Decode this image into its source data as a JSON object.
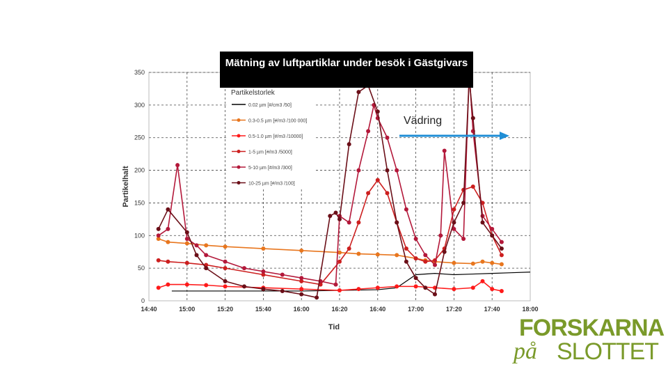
{
  "title": "Mätning av luftpartiklar under besök i Gästgivars",
  "annotation": "Vädring",
  "logo": {
    "line1": "FORSKARNA",
    "line2a": "på",
    "line2b": "SLOTTET",
    "color": "#7a9a2a"
  },
  "chart_data": {
    "type": "line",
    "xlabel": "Tid",
    "ylabel": "Partikelhalt",
    "ylim": [
      0,
      350
    ],
    "yticks": [
      0,
      50,
      100,
      150,
      200,
      250,
      300,
      350
    ],
    "xlim_minutes": [
      880,
      1080
    ],
    "xticks": [
      "14:40",
      "15:00",
      "15:20",
      "15:40",
      "16:00",
      "16:20",
      "16:40",
      "17:00",
      "17:20",
      "17:40",
      "18:00"
    ],
    "grid": true,
    "legend_title": "Partikelstorlek",
    "legend_position": "top-left",
    "series": [
      {
        "name": "0.02 µm [#/cm3 /50]",
        "color": "#000000",
        "marker": false,
        "x": [
          "14:52",
          "15:00",
          "15:20",
          "15:40",
          "16:00",
          "16:20",
          "16:40",
          "16:50",
          "16:55",
          "17:00",
          "17:10",
          "17:20",
          "17:30",
          "17:40",
          "17:50",
          "18:00"
        ],
        "y": [
          15,
          15,
          15,
          15,
          15,
          16,
          17,
          20,
          30,
          40,
          42,
          40,
          41,
          42,
          43,
          44
        ]
      },
      {
        "name": "0.3-0.5 µm [#/m3 /100 000]",
        "color": "#e8761e",
        "marker": true,
        "x": [
          "14:45",
          "14:50",
          "15:00",
          "15:10",
          "15:20",
          "15:40",
          "16:00",
          "16:20",
          "16:30",
          "16:40",
          "16:50",
          "17:00",
          "17:05",
          "17:10",
          "17:20",
          "17:30",
          "17:35",
          "17:40",
          "17:45"
        ],
        "y": [
          95,
          90,
          88,
          85,
          83,
          80,
          77,
          74,
          72,
          71,
          70,
          65,
          62,
          60,
          58,
          57,
          60,
          58,
          56
        ]
      },
      {
        "name": "0.5-1.0 µm [#/m3 /10000]",
        "color": "#ff1a1a",
        "marker": true,
        "x": [
          "14:45",
          "14:50",
          "15:00",
          "15:10",
          "15:20",
          "15:40",
          "16:00",
          "16:20",
          "16:30",
          "16:40",
          "16:50",
          "17:00",
          "17:10",
          "17:20",
          "17:30",
          "17:35",
          "17:40",
          "17:45"
        ],
        "y": [
          20,
          25,
          25,
          24,
          22,
          20,
          18,
          16,
          18,
          20,
          22,
          22,
          20,
          18,
          20,
          30,
          18,
          15
        ]
      },
      {
        "name": "1-5 µm [#/m3 /5000]",
        "color": "#cc1f1f",
        "marker": true,
        "x": [
          "14:45",
          "14:50",
          "15:00",
          "15:10",
          "15:20",
          "15:40",
          "16:00",
          "16:10",
          "16:20",
          "16:25",
          "16:30",
          "16:35",
          "16:40",
          "16:45",
          "16:50",
          "16:55",
          "17:00",
          "17:05",
          "17:10",
          "17:15",
          "17:20",
          "17:25",
          "17:30",
          "17:35",
          "17:40",
          "17:45"
        ],
        "y": [
          62,
          60,
          58,
          55,
          50,
          40,
          30,
          25,
          60,
          80,
          120,
          165,
          185,
          165,
          120,
          80,
          65,
          60,
          62,
          80,
          140,
          170,
          175,
          150,
          100,
          70
        ]
      },
      {
        "name": "5-10 µm [#/m3 /300]",
        "color": "#b3183a",
        "marker": true,
        "x": [
          "14:45",
          "14:50",
          "14:55",
          "15:00",
          "15:05",
          "15:10",
          "15:20",
          "15:30",
          "15:40",
          "15:50",
          "16:00",
          "16:10",
          "16:18",
          "16:20",
          "16:25",
          "16:30",
          "16:35",
          "16:38",
          "16:40",
          "16:45",
          "16:50",
          "16:55",
          "17:00",
          "17:05",
          "17:10",
          "17:13",
          "17:15",
          "17:20",
          "17:25",
          "17:28",
          "17:30",
          "17:35",
          "17:40",
          "17:45"
        ],
        "y": [
          100,
          110,
          208,
          95,
          85,
          70,
          60,
          50,
          45,
          40,
          35,
          30,
          25,
          130,
          120,
          200,
          260,
          300,
          280,
          250,
          200,
          140,
          95,
          70,
          55,
          100,
          230,
          110,
          95,
          350,
          260,
          130,
          110,
          90
        ]
      },
      {
        "name": "10-25 µm [#/m3 /100]",
        "color": "#6b0f18",
        "marker": true,
        "x": [
          "14:45",
          "14:50",
          "15:00",
          "15:05",
          "15:10",
          "15:20",
          "15:30",
          "15:40",
          "15:50",
          "16:00",
          "16:08",
          "16:15",
          "16:18",
          "16:20",
          "16:25",
          "16:30",
          "16:35",
          "16:40",
          "16:45",
          "16:50",
          "16:55",
          "17:00",
          "17:05",
          "17:10",
          "17:15",
          "17:20",
          "17:25",
          "17:28",
          "17:30",
          "17:35",
          "17:40",
          "17:45"
        ],
        "y": [
          110,
          140,
          105,
          70,
          50,
          30,
          22,
          18,
          15,
          10,
          5,
          130,
          135,
          125,
          240,
          320,
          330,
          290,
          200,
          120,
          60,
          35,
          20,
          10,
          75,
          120,
          150,
          340,
          280,
          120,
          100,
          80
        ]
      }
    ]
  }
}
